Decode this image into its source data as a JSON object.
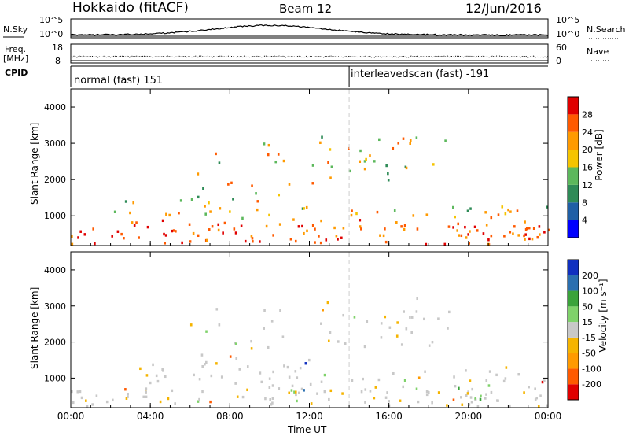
{
  "header": {
    "station": "Hokkaido (fitACF)",
    "beam": "Beam 12",
    "date": "12/Jun/2016"
  },
  "strip": {
    "nsky_label": "N.Sky",
    "nsearch_label": "N.Search",
    "freq_label_line1": "Freq.",
    "freq_label_line2": "[MHz]",
    "nave_label": "Nave",
    "cpid_label": "CPID",
    "noise_ticks_left": [
      "10^5",
      "10^0"
    ],
    "noise_ticks_right": [
      "10^5",
      "10^0"
    ],
    "freq_ticks": [
      "18",
      "8"
    ],
    "nave_ticks": [
      "60",
      "0"
    ],
    "cpid_segments": [
      {
        "label": "normal (fast) 151",
        "start_hour": 0
      },
      {
        "label": "interleavedscan (fast) -191",
        "start_hour": 14
      }
    ]
  },
  "chart_data": [
    {
      "type": "heatmap",
      "name": "power",
      "ylabel": "Slant Range [km]",
      "xlabel": "",
      "y_ticks": [
        1000,
        2000,
        3000,
        4000
      ],
      "x_range_hours": [
        0,
        24
      ],
      "y_range_km": [
        180,
        4500
      ],
      "colorbar": {
        "label": "Power [dB]",
        "ticks": [
          "28",
          "24",
          "20",
          "16",
          "12",
          "8",
          "4"
        ],
        "colors": [
          "#0000ff",
          "#1f5fa6",
          "#2e8b57",
          "#5cb85c",
          "#f5c400",
          "#ff9a00",
          "#ff5a00",
          "#e00000"
        ]
      }
    },
    {
      "type": "heatmap",
      "name": "velocity",
      "ylabel": "Slant Range [km]",
      "xlabel": "Time UT",
      "y_ticks": [
        1000,
        2000,
        3000,
        4000
      ],
      "x_ticks": [
        "00:00",
        "04:00",
        "08:00",
        "12:00",
        "16:00",
        "20:00",
        "00:00"
      ],
      "x_range_hours": [
        0,
        24
      ],
      "y_range_km": [
        180,
        4500
      ],
      "colorbar": {
        "label": "Velocity [m s⁻¹]",
        "ticks": [
          "200",
          "100",
          "50",
          "15",
          "-15",
          "-50",
          "-100",
          "-200"
        ],
        "colors": [
          "#e00000",
          "#ff5a00",
          "#ff9a00",
          "#f5b400",
          "#c8c8c8",
          "#7fd26a",
          "#3aa33a",
          "#2a6fb0",
          "#1030c0"
        ]
      }
    }
  ]
}
